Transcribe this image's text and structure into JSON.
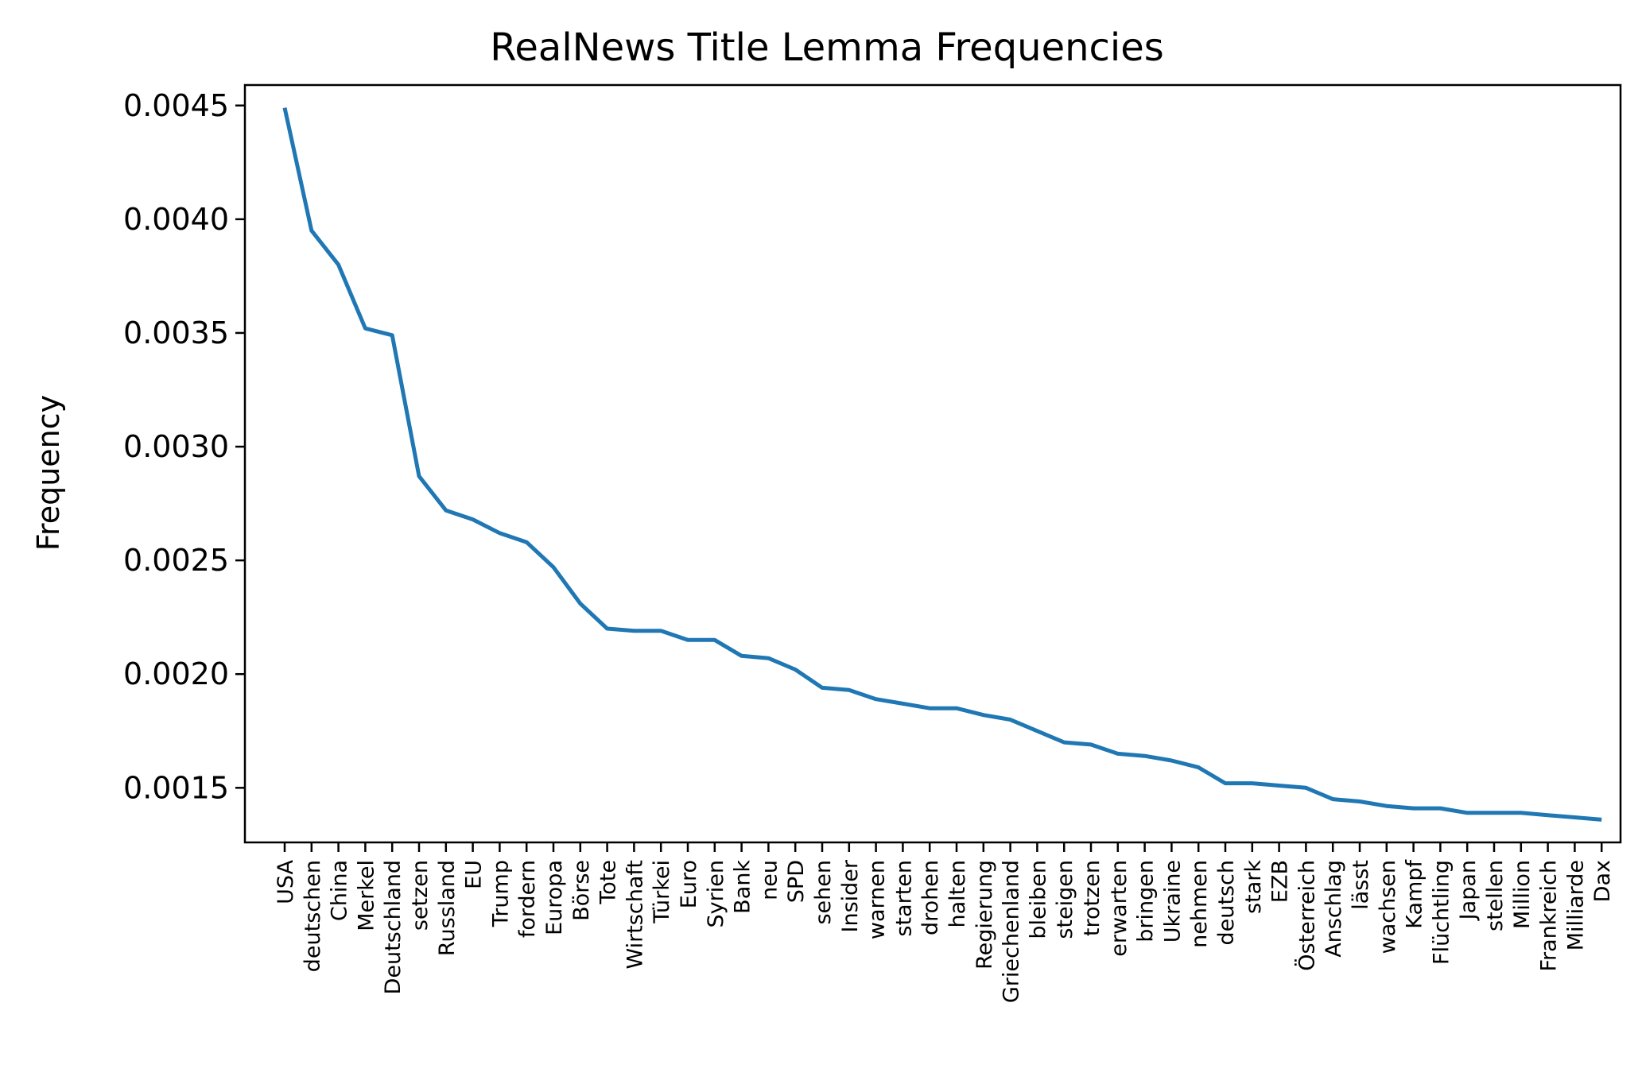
{
  "chart_data": {
    "type": "line",
    "title": "RealNews Title Lemma Frequencies",
    "xlabel": "",
    "ylabel": "Frequency",
    "ylim": [
      0.00126,
      0.00459
    ],
    "yticks": [
      "0.0015",
      "0.0020",
      "0.0025",
      "0.0030",
      "0.0035",
      "0.0040",
      "0.0045"
    ],
    "grid": false,
    "line_color": "#1f77b4",
    "categories": [
      "USA",
      "deutschen",
      "China",
      "Merkel",
      "Deutschland",
      "setzen",
      "Russland",
      "EU",
      "Trump",
      "fordern",
      "Europa",
      "Börse",
      "Tote",
      "Wirtschaft",
      "Türkei",
      "Euro",
      "Syrien",
      "Bank",
      "neu",
      "SPD",
      "sehen",
      "Insider",
      "warnen",
      "starten",
      "drohen",
      "halten",
      "Regierung",
      "Griechenland",
      "bleiben",
      "steigen",
      "trotzen",
      "erwarten",
      "bringen",
      "Ukraine",
      "nehmen",
      "deutsch",
      "stark",
      "EZB",
      "Österreich",
      "Anschlag",
      "lässt",
      "wachsen",
      "Kampf",
      "Flüchtling",
      "Japan",
      "stellen",
      "Million",
      "Frankreich",
      "Milliarde",
      "Dax"
    ],
    "values": [
      0.00449,
      0.00395,
      0.0038,
      0.00352,
      0.00349,
      0.00287,
      0.00272,
      0.00268,
      0.00262,
      0.00258,
      0.00247,
      0.00231,
      0.0022,
      0.00219,
      0.00219,
      0.00215,
      0.00215,
      0.00208,
      0.00207,
      0.00202,
      0.00194,
      0.00193,
      0.00189,
      0.00187,
      0.00185,
      0.00185,
      0.00182,
      0.0018,
      0.00175,
      0.0017,
      0.00169,
      0.00165,
      0.00164,
      0.00162,
      0.00159,
      0.00152,
      0.00152,
      0.00151,
      0.0015,
      0.00145,
      0.00144,
      0.00142,
      0.00141,
      0.00141,
      0.00139,
      0.00139,
      0.00139,
      0.00138,
      0.00137,
      0.00136
    ]
  }
}
